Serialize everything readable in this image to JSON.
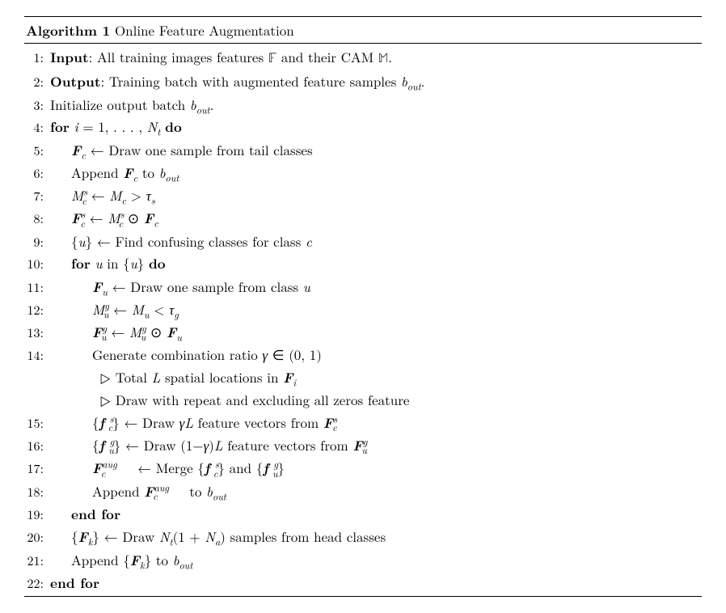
{
  "header": {
    "label": "Algorithm 1",
    "title": "Online Feature Augmentation"
  },
  "lines": [
    {
      "n": "1:",
      "indent": 0,
      "html": "<span class='kw'>Input</span>: All training images features <span class='bb'>𝔽</span> and their CAM <span class='bb'>𝕄</span>."
    },
    {
      "n": "2:",
      "indent": 0,
      "html": "<span class='kw'>Output</span>: Training batch with augmented feature samples <span class='math-i'>b</span><span class='sub math-i'>out</span>."
    },
    {
      "n": "3:",
      "indent": 0,
      "html": "Initialize output batch <span class='math-i'>b</span><span class='sub math-i'>out</span>."
    },
    {
      "n": "4:",
      "indent": 0,
      "html": "<span class='kw'>for</span> <span class='math-i'>i</span> = 1, . . . , <span class='math-i'>N</span><span class='sub math-i'>t</span> <span class='kw'>do</span>"
    },
    {
      "n": "5:",
      "indent": 1,
      "html": "<span class='bold-i'>F</span><span class='sub math-i'>c</span> ← Draw one sample from tail classes"
    },
    {
      "n": "6:",
      "indent": 1,
      "html": "Append <span class='bold-i'>F</span><span class='sub math-i'>c</span> to <span class='math-i'>b</span><span class='sub math-i'>out</span>"
    },
    {
      "n": "7:",
      "indent": 1,
      "html": "<span class='math-i'>M</span><span class='sup math-i'>s</span><span class='sub math-i' style='margin-left:-7px;'>c</span> ← <span class='math-i'>M</span><span class='sub math-i'>c</span> &gt; <span class='math-i'>τ</span><span class='sub math-i'>s</span>"
    },
    {
      "n": "8:",
      "indent": 1,
      "html": "<span class='bold-i'>F</span><span class='sup math-i'>s</span><span class='sub math-i' style='margin-left:-6px;'>c</span> ← <span class='math-i'>M</span><span class='sup math-i'>s</span><span class='sub math-i' style='margin-left:-7px;'>c</span> ⊙ <span class='bold-i'>F</span><span class='sub math-i'>c</span>"
    },
    {
      "n": "9:",
      "indent": 1,
      "html": "{<span class='math-i'>u</span>} ← Find confusing classes for class <span class='math-i'>c</span>"
    },
    {
      "n": "10:",
      "indent": 1,
      "html": "<span class='kw'>for</span> <span class='math-i'>u</span> in {<span class='math-i'>u</span>} <span class='kw'>do</span>"
    },
    {
      "n": "11:",
      "indent": 2,
      "html": "<span class='bold-i'>F</span><span class='sub math-i'>u</span> ← Draw one sample from class <span class='math-i'>u</span>"
    },
    {
      "n": "12:",
      "indent": 2,
      "html": "<span class='math-i'>M</span><span class='sup math-i'>g</span><span class='sub math-i' style='margin-left:-7px;'>u</span> ← <span class='math-i'>M</span><span class='sub math-i'>u</span> &lt; <span class='math-i'>τ</span><span class='sub math-i'>g</span>"
    },
    {
      "n": "13:",
      "indent": 2,
      "html": "<span class='bold-i'>F</span><span class='sup math-i'>g</span><span class='sub math-i' style='margin-left:-7px;'>u</span> ← <span class='math-i'>M</span><span class='sup math-i'>g</span><span class='sub math-i' style='margin-left:-7px;'>u</span> ⊙ <span class='bold-i'>F</span><span class='sub math-i'>u</span>"
    },
    {
      "n": "14:",
      "indent": 2,
      "html": "Generate combination ratio <span class='math-i'>γ</span> ∈ (0, 1)"
    },
    {
      "n": "",
      "indent": 2,
      "html": "<span class='tri-comment'><span class='tri'>▷</span> Total <span class='math-i'>L</span> spatial locations in <span class='bold-i'>F</span><span class='sub math-i'>i</span></span>"
    },
    {
      "n": "",
      "indent": 2,
      "html": "<span class='tri-comment'><span class='tri'>▷</span> Draw with repeat and excluding all zeros feature</span>"
    },
    {
      "n": "15:",
      "indent": 2,
      "html": "{<span class='bold-i'>f</span><span class='sup math-i'>&nbsp;s</span><span class='sub math-i' style='margin-left:-7px;'>c</span>} ← Draw <span class='math-i'>γL</span> feature vectors from <span class='bold-i'>F</span><span class='sup math-i'>s</span><span class='sub math-i' style='margin-left:-6px;'>c</span>"
    },
    {
      "n": "16:",
      "indent": 2,
      "html": "{<span class='bold-i'>f</span><span class='sup math-i'>&nbsp;g</span><span class='sub math-i' style='margin-left:-7px;'>u</span>} ← Draw (1−<span class='math-i'>γ</span>)<span class='math-i'>L</span> feature vectors from <span class='bold-i'>F</span><span class='sup math-i'>g</span><span class='sub math-i' style='margin-left:-7px;'>u</span>"
    },
    {
      "n": "17:",
      "indent": 2,
      "html": "<span class='bold-i'>F</span><span class='sup math-i'>aug</span><span class='sub math-i' style='margin-left:-20px;'>c</span>&nbsp;&nbsp;&nbsp;&nbsp; ← Merge {<span class='bold-i'>f</span><span class='sup math-i'>&nbsp;s</span><span class='sub math-i' style='margin-left:-7px;'>c</span>} and {<span class='bold-i'>f</span><span class='sup math-i'>&nbsp;g</span><span class='sub math-i' style='margin-left:-7px;'>u</span>}"
    },
    {
      "n": "18:",
      "indent": 2,
      "html": "Append <span class='bold-i'>F</span><span class='sup math-i'>aug</span><span class='sub math-i' style='margin-left:-20px;'>c</span>&nbsp;&nbsp;&nbsp;&nbsp; to <span class='math-i'>b</span><span class='sub math-i'>out</span>"
    },
    {
      "n": "19:",
      "indent": 1,
      "html": "<span class='kw'>end for</span>"
    },
    {
      "n": "20:",
      "indent": 1,
      "html": "{<span class='bold-i'>F</span><span class='sub math-i'>k</span>} ← Draw <span class='math-i'>N</span><span class='sub math-i'>t</span>(1 + <span class='math-i'>N</span><span class='sub math-i'>a</span>) samples from head classes"
    },
    {
      "n": "21:",
      "indent": 1,
      "html": "Append {<span class='bold-i'>F</span><span class='sub math-i'>k</span>} to <span class='math-i'>b</span><span class='sub math-i'>out</span>"
    },
    {
      "n": "22:",
      "indent": 0,
      "html": "<span class='kw'>end for</span>"
    }
  ]
}
